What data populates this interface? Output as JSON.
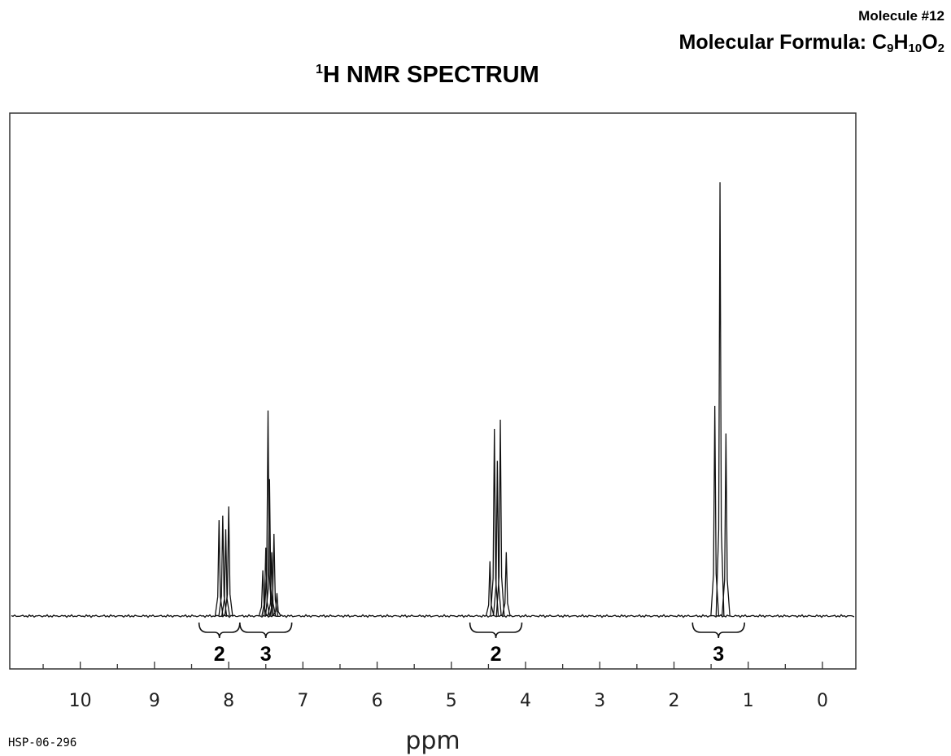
{
  "header": {
    "molecule": "Molecule #12",
    "formula_prefix": "Molecular Formula: C",
    "formula_c": "9",
    "formula_h_letter": "H",
    "formula_h": "10",
    "formula_o_letter": "O",
    "formula_o": "2"
  },
  "title_sup": "1",
  "title_main": "H NMR SPECTRUM",
  "spectrum_code": "HSP-06-296",
  "chart_data": {
    "type": "line",
    "title": "1H NMR SPECTRUM",
    "xlabel": "ppm",
    "ylabel": "",
    "xlim": [
      10.95,
      -0.45
    ],
    "x_reversed": true,
    "ylim": [
      0,
      100
    ],
    "grid": false,
    "x_ticks": [
      10,
      9,
      8,
      7,
      6,
      5,
      4,
      3,
      2,
      1,
      0
    ],
    "baseline": 0,
    "peaks": [
      {
        "ppm": 8.13,
        "height": 21
      },
      {
        "ppm": 8.08,
        "height": 22
      },
      {
        "ppm": 8.04,
        "height": 19
      },
      {
        "ppm": 8.0,
        "height": 24
      },
      {
        "ppm": 7.54,
        "height": 10
      },
      {
        "ppm": 7.5,
        "height": 15
      },
      {
        "ppm": 7.47,
        "height": 45
      },
      {
        "ppm": 7.45,
        "height": 30
      },
      {
        "ppm": 7.42,
        "height": 14
      },
      {
        "ppm": 7.39,
        "height": 18
      },
      {
        "ppm": 7.35,
        "height": 5
      },
      {
        "ppm": 4.48,
        "height": 12
      },
      {
        "ppm": 4.42,
        "height": 41
      },
      {
        "ppm": 4.38,
        "height": 34
      },
      {
        "ppm": 4.34,
        "height": 43
      },
      {
        "ppm": 4.26,
        "height": 14
      },
      {
        "ppm": 1.45,
        "height": 46
      },
      {
        "ppm": 1.38,
        "height": 95
      },
      {
        "ppm": 1.3,
        "height": 40
      }
    ],
    "integrations": [
      {
        "label": "2",
        "from": 8.4,
        "to": 7.85
      },
      {
        "label": "3",
        "from": 7.85,
        "to": 7.15
      },
      {
        "label": "2",
        "from": 4.75,
        "to": 4.05
      },
      {
        "label": "3",
        "from": 1.75,
        "to": 1.05
      }
    ]
  }
}
